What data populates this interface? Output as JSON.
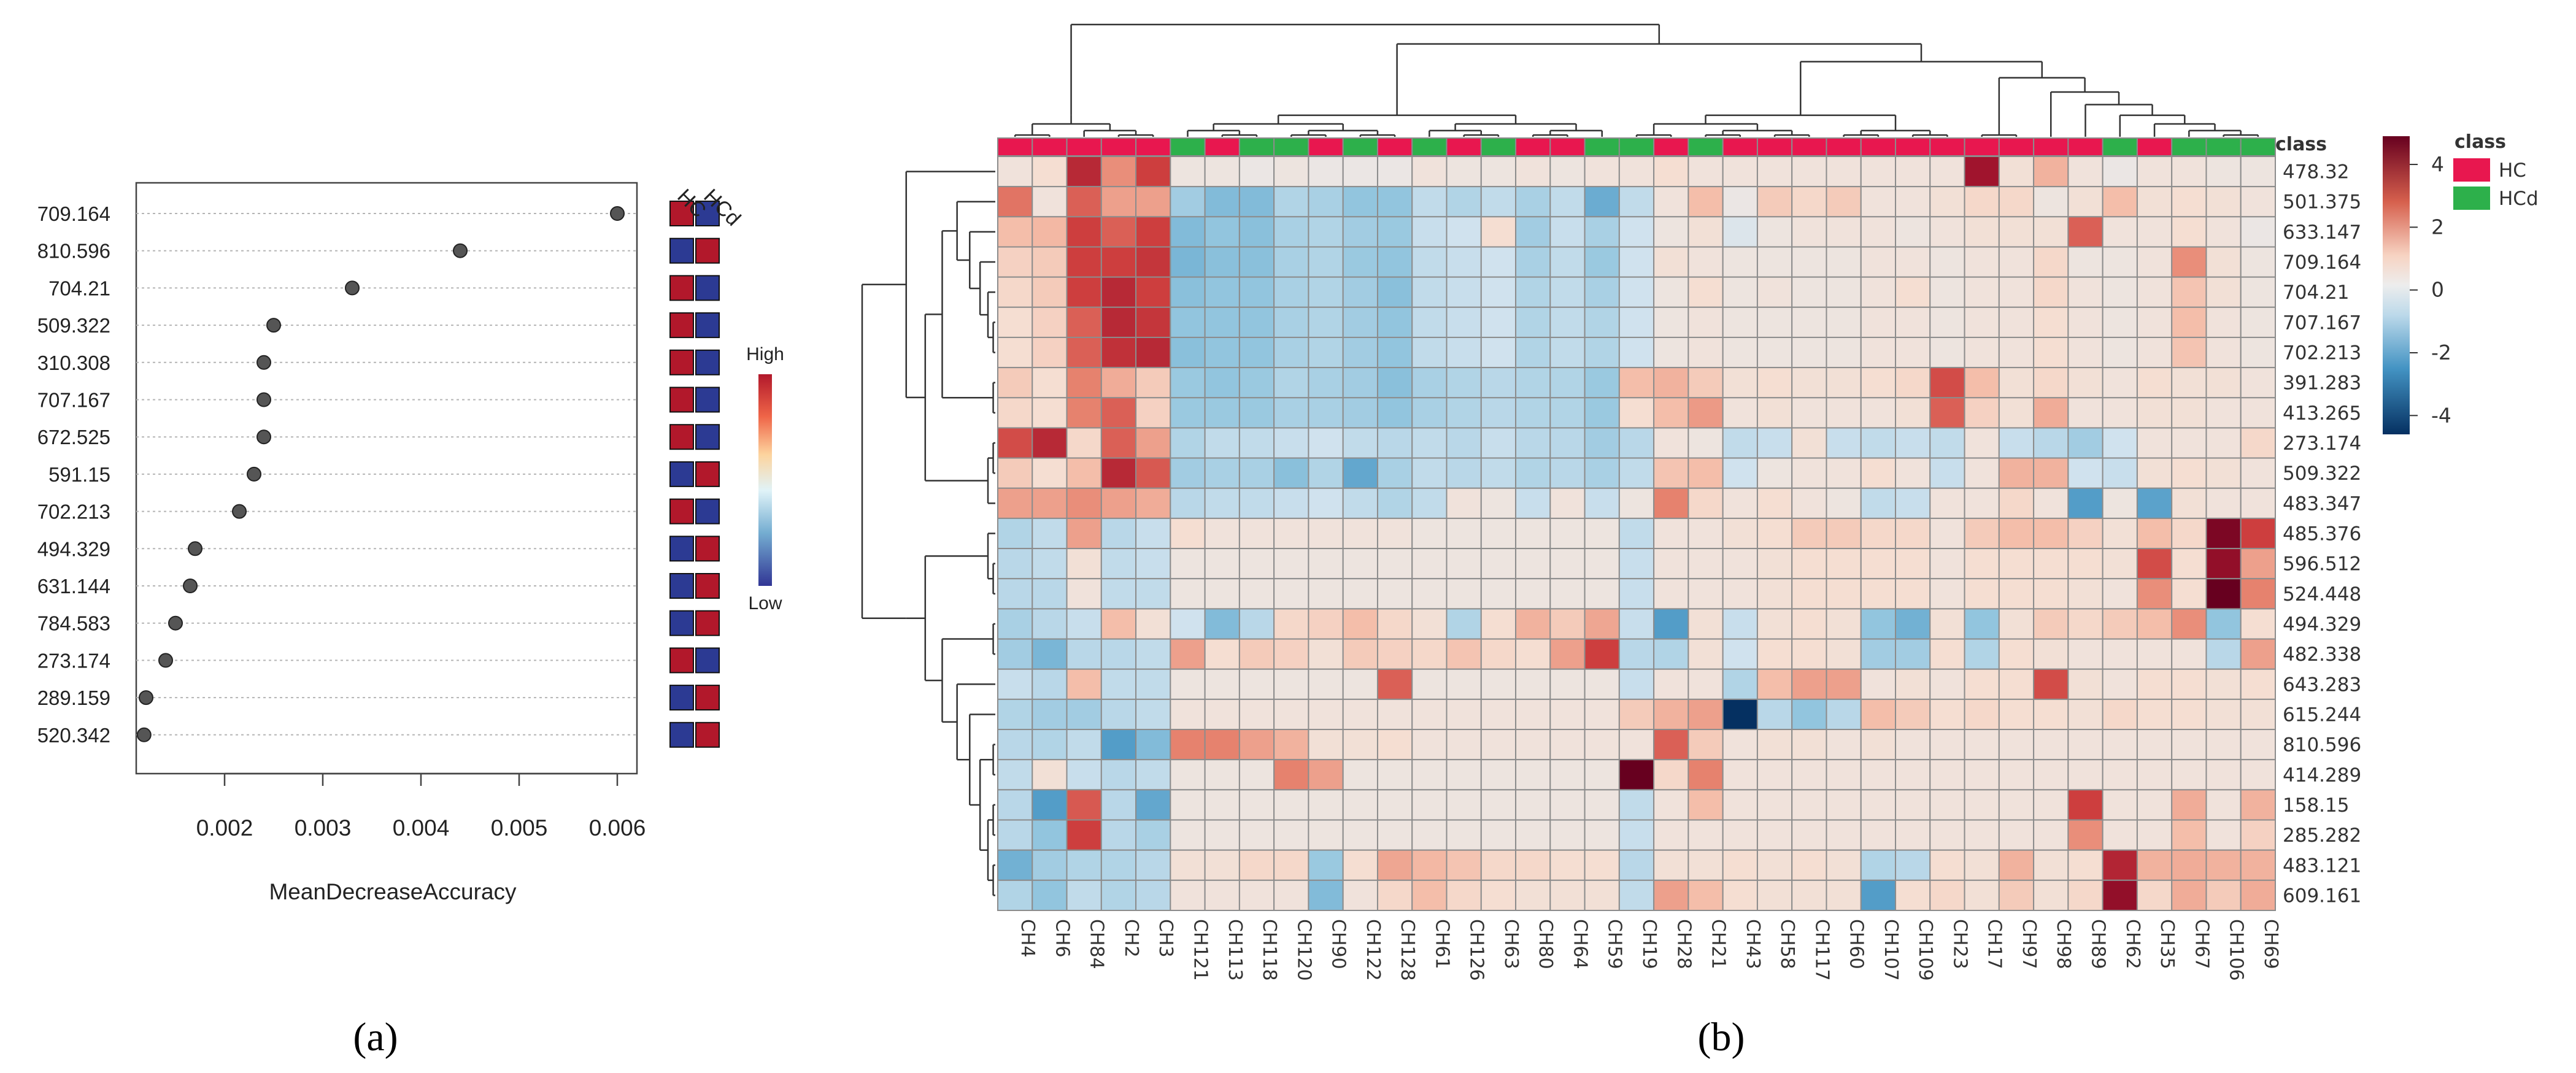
{
  "panel_a": {
    "label": "(a)",
    "col_headers": [
      "HC",
      "HCd"
    ],
    "legend": {
      "high": "High",
      "low": "Low"
    }
  },
  "panel_b": {
    "label": "(b)",
    "class_legend": {
      "title": "class",
      "items": [
        {
          "name": "HC",
          "color": "#e8174f"
        },
        {
          "name": "HCd",
          "color": "#2db04b"
        }
      ]
    },
    "colorbar_ticks": [
      4,
      2,
      0,
      -2,
      -4
    ]
  },
  "chart_data": [
    {
      "type": "dot",
      "title": "",
      "xlabel": "MeanDecreaseAccuracy",
      "ylabel": "",
      "xlim": [
        0.0011,
        0.0062
      ],
      "xticks": [
        0.002,
        0.003,
        0.004,
        0.005,
        0.006
      ],
      "xtick_labels": [
        "0.002",
        "0.003",
        "0.004",
        "0.005",
        "0.006"
      ],
      "features": [
        "709.164",
        "810.596",
        "704.21",
        "509.322",
        "310.308",
        "707.167",
        "672.525",
        "591.15",
        "702.213",
        "494.329",
        "631.144",
        "784.583",
        "273.174",
        "289.159",
        "520.342"
      ],
      "values": [
        0.006,
        0.0044,
        0.0033,
        0.0025,
        0.0024,
        0.0024,
        0.0024,
        0.0023,
        0.00215,
        0.0017,
        0.00165,
        0.0015,
        0.0014,
        0.0012,
        0.00118
      ],
      "class_levels": [
        "HC",
        "HCd"
      ],
      "class_levels_colors": {
        "high": "#b2182b",
        "low": "#2c3a93"
      },
      "class_levels_matrix": [
        [
          "high",
          "low"
        ],
        [
          "low",
          "high"
        ],
        [
          "high",
          "low"
        ],
        [
          "high",
          "low"
        ],
        [
          "high",
          "low"
        ],
        [
          "high",
          "low"
        ],
        [
          "high",
          "low"
        ],
        [
          "low",
          "high"
        ],
        [
          "high",
          "low"
        ],
        [
          "low",
          "high"
        ],
        [
          "low",
          "high"
        ],
        [
          "low",
          "high"
        ],
        [
          "high",
          "low"
        ],
        [
          "low",
          "high"
        ],
        [
          "low",
          "high"
        ]
      ]
    },
    {
      "type": "heatmap",
      "title": "",
      "columns": [
        "CH4",
        "CH6",
        "CH84",
        "CH2",
        "CH3",
        "CH121",
        "CH113",
        "CH118",
        "CH120",
        "CH90",
        "CH122",
        "CH128",
        "CH61",
        "CH126",
        "CH63",
        "CH80",
        "CH64",
        "CH59",
        "CH19",
        "CH28",
        "CH21",
        "CH43",
        "CH58",
        "CH117",
        "CH60",
        "CH107",
        "CH109",
        "CH23",
        "CH17",
        "CH97",
        "CH98",
        "CH89",
        "CH62",
        "CH35",
        "CH67",
        "CH106",
        "CH69"
      ],
      "column_class": [
        "HC",
        "HC",
        "HC",
        "HC",
        "HC",
        "HCd",
        "HC",
        "HCd",
        "HCd",
        "HC",
        "HCd",
        "HC",
        "HCd",
        "HC",
        "HCd",
        "HC",
        "HC",
        "HCd",
        "HCd",
        "HC",
        "HCd",
        "HC",
        "HC",
        "HC",
        "HC",
        "HC",
        "HC",
        "HC",
        "HC",
        "HC",
        "HC",
        "HC",
        "HCd",
        "HC",
        "HCd",
        "HCd",
        "HCd"
      ],
      "rows": [
        "478.32",
        "501.375",
        "633.147",
        "709.164",
        "704.21",
        "707.167",
        "702.213",
        "391.283",
        "413.265",
        "273.174",
        "509.322",
        "483.347",
        "485.376",
        "596.512",
        "524.448",
        "494.329",
        "482.338",
        "643.283",
        "615.244",
        "810.596",
        "414.289",
        "158.15",
        "285.282",
        "483.121",
        "609.161"
      ],
      "value_range": [
        -4.5,
        4.5
      ],
      "colors": {
        "low": "#053061",
        "mid": "#e8e8e8",
        "high": "#67001f"
      },
      "values": [
        [
          0.3,
          0.5,
          3.5,
          1.8,
          3.0,
          0.2,
          0.2,
          0.1,
          0.2,
          0.1,
          0.1,
          0.1,
          0.3,
          0.2,
          0.2,
          0.3,
          0.2,
          0.3,
          0.3,
          0.5,
          0.3,
          0.3,
          0.3,
          0.3,
          0.3,
          0.3,
          0.3,
          0.3,
          4.0,
          0.4,
          1.2,
          0.3,
          0.1,
          0.3,
          0.3,
          0.2,
          0.2
        ],
        [
          2.2,
          0.3,
          2.5,
          1.5,
          1.5,
          -0.8,
          -1.2,
          -1.2,
          -0.6,
          -0.7,
          -1.0,
          -1.0,
          -0.4,
          -0.6,
          -0.4,
          -0.7,
          -0.4,
          -1.5,
          -0.4,
          0.3,
          1.0,
          0.1,
          0.8,
          0.6,
          0.8,
          0.3,
          0.3,
          0.4,
          0.6,
          0.6,
          0.2,
          0.4,
          1.0,
          0.4,
          0.5,
          0.4,
          0.3
        ],
        [
          1.0,
          1.1,
          3.0,
          2.5,
          3.0,
          -1.2,
          -1.0,
          -1.1,
          -0.7,
          -0.6,
          -0.8,
          -0.9,
          -0.3,
          -0.2,
          0.5,
          -0.8,
          -0.3,
          -0.7,
          -0.2,
          0.2,
          0.4,
          -0.1,
          0.2,
          0.3,
          0.3,
          0.3,
          0.2,
          0.3,
          0.4,
          0.4,
          0.4,
          2.5,
          0.3,
          0.3,
          0.5,
          0.3,
          0.1
        ],
        [
          0.7,
          0.8,
          3.0,
          3.0,
          3.2,
          -1.3,
          -1.1,
          -1.1,
          -0.7,
          -0.6,
          -0.9,
          -1.0,
          -0.4,
          -0.3,
          -0.2,
          -0.7,
          -0.4,
          -0.9,
          -0.2,
          0.4,
          0.3,
          0.2,
          0.2,
          0.2,
          0.2,
          0.3,
          0.3,
          0.2,
          0.3,
          0.3,
          0.6,
          0.2,
          0.2,
          0.3,
          1.8,
          0.4,
          0.2
        ],
        [
          0.6,
          0.8,
          3.0,
          3.5,
          3.0,
          -1.1,
          -1.0,
          -1.0,
          -0.7,
          -0.6,
          -0.8,
          -1.1,
          -0.4,
          -0.3,
          -0.2,
          -0.6,
          -0.4,
          -0.7,
          -0.2,
          0.2,
          0.5,
          0.2,
          0.3,
          0.2,
          0.2,
          0.3,
          0.5,
          0.2,
          0.3,
          0.3,
          0.6,
          0.3,
          0.2,
          0.3,
          0.9,
          0.4,
          0.2
        ],
        [
          0.5,
          0.7,
          2.5,
          3.5,
          3.2,
          -1.0,
          -1.0,
          -1.0,
          -0.7,
          -0.6,
          -0.8,
          -1.0,
          -0.4,
          -0.3,
          -0.2,
          -0.6,
          -0.4,
          -0.6,
          -0.2,
          0.2,
          0.3,
          0.2,
          0.2,
          0.2,
          0.2,
          0.3,
          0.3,
          0.2,
          0.3,
          0.3,
          0.5,
          0.3,
          0.2,
          0.3,
          1.0,
          0.3,
          0.2
        ],
        [
          0.5,
          0.7,
          2.5,
          3.3,
          3.5,
          -1.1,
          -1.0,
          -1.0,
          -0.7,
          -0.6,
          -0.8,
          -1.0,
          -0.4,
          -0.3,
          -0.2,
          -0.6,
          -0.4,
          -0.6,
          -0.2,
          0.2,
          0.3,
          0.2,
          0.2,
          0.2,
          0.2,
          0.3,
          0.3,
          0.2,
          0.3,
          0.3,
          0.5,
          0.3,
          0.2,
          0.3,
          0.9,
          0.3,
          0.2
        ],
        [
          0.8,
          0.5,
          2.0,
          1.3,
          0.8,
          -0.9,
          -1.0,
          -0.9,
          -0.6,
          -0.7,
          -0.8,
          -1.1,
          -0.7,
          -0.6,
          -0.5,
          -0.6,
          -0.6,
          -0.9,
          1.0,
          1.2,
          0.8,
          0.4,
          0.5,
          0.4,
          0.4,
          0.5,
          0.6,
          2.8,
          1.0,
          0.4,
          0.6,
          0.4,
          0.3,
          0.5,
          0.4,
          0.4,
          0.3
        ],
        [
          0.6,
          0.5,
          2.0,
          2.5,
          0.7,
          -0.9,
          -0.9,
          -0.9,
          -0.7,
          -0.7,
          -0.8,
          -1.0,
          -0.7,
          -0.6,
          -0.5,
          -0.6,
          -0.6,
          -0.9,
          0.5,
          1.0,
          1.6,
          0.3,
          0.4,
          0.3,
          0.3,
          0.3,
          0.4,
          2.5,
          0.7,
          0.4,
          1.3,
          0.3,
          0.3,
          0.4,
          0.4,
          0.3,
          0.3
        ],
        [
          2.8,
          3.5,
          0.6,
          2.5,
          1.5,
          -0.6,
          -0.4,
          -0.4,
          -0.3,
          -0.2,
          -0.4,
          -0.5,
          -0.4,
          -0.5,
          -0.3,
          -0.5,
          -0.5,
          -0.8,
          -0.5,
          0.3,
          0.2,
          -0.4,
          -0.3,
          0.4,
          -0.3,
          -0.4,
          -0.3,
          -0.4,
          0.3,
          -0.3,
          -0.5,
          -0.8,
          -0.2,
          0.3,
          0.3,
          0.3,
          0.6
        ],
        [
          0.8,
          0.5,
          1.0,
          3.5,
          2.6,
          -0.8,
          -0.7,
          -0.7,
          -1.1,
          -0.6,
          -1.6,
          -0.7,
          -0.4,
          -0.5,
          -0.4,
          -0.6,
          -0.5,
          -0.7,
          -0.4,
          0.9,
          1.0,
          -0.2,
          0.2,
          0.3,
          0.3,
          0.5,
          0.3,
          -0.3,
          0.3,
          1.2,
          1.2,
          -0.2,
          -0.3,
          0.4,
          0.5,
          0.4,
          0.3
        ],
        [
          1.5,
          1.5,
          1.8,
          1.5,
          1.3,
          -0.5,
          -0.4,
          -0.4,
          -0.3,
          -0.2,
          -0.4,
          -0.6,
          -0.4,
          0.3,
          0.2,
          -0.3,
          0.3,
          -0.3,
          0.2,
          2.0,
          0.6,
          0.3,
          0.5,
          0.3,
          0.2,
          -0.4,
          -0.3,
          0.3,
          0.3,
          0.6,
          0.3,
          -1.8,
          0.2,
          -1.7,
          0.4,
          0.3,
          0.3
        ],
        [
          -0.6,
          -0.4,
          1.5,
          -0.5,
          -0.3,
          0.5,
          0.3,
          0.3,
          0.3,
          0.3,
          0.3,
          0.3,
          0.2,
          0.2,
          0.2,
          0.2,
          0.2,
          0.2,
          -0.4,
          0.3,
          0.3,
          0.4,
          0.5,
          0.8,
          0.8,
          0.6,
          0.6,
          0.3,
          0.8,
          1.0,
          1.0,
          0.7,
          0.4,
          1.0,
          0.6,
          4.5,
          3.0
        ],
        [
          -0.5,
          -0.4,
          0.4,
          -0.4,
          -0.3,
          0.2,
          0.2,
          0.2,
          0.2,
          0.2,
          0.2,
          0.2,
          0.2,
          0.2,
          0.2,
          0.2,
          0.2,
          0.2,
          -0.3,
          0.3,
          0.3,
          0.3,
          0.4,
          0.5,
          0.5,
          0.5,
          0.5,
          0.3,
          0.5,
          0.5,
          0.5,
          0.5,
          0.4,
          2.8,
          0.5,
          4.2,
          1.5
        ],
        [
          -0.5,
          -0.5,
          0.3,
          -0.4,
          -0.4,
          0.2,
          0.2,
          0.2,
          0.2,
          0.2,
          0.2,
          0.2,
          0.2,
          0.2,
          0.2,
          0.2,
          0.2,
          0.2,
          -0.3,
          0.3,
          0.3,
          0.3,
          0.4,
          0.5,
          0.5,
          0.5,
          0.5,
          0.3,
          0.5,
          0.5,
          0.5,
          0.4,
          0.3,
          1.8,
          0.5,
          4.8,
          2.0
        ],
        [
          -0.7,
          -0.5,
          -0.3,
          1.0,
          0.4,
          -0.2,
          -1.2,
          -0.5,
          0.6,
          0.7,
          1.0,
          0.6,
          0.4,
          -0.6,
          0.5,
          1.2,
          0.8,
          1.4,
          -0.3,
          -1.8,
          0.4,
          -0.3,
          0.4,
          0.5,
          0.4,
          -1.0,
          -1.4,
          0.4,
          -1.0,
          0.4,
          0.8,
          0.6,
          0.8,
          1.0,
          1.8,
          -1.0,
          0.5
        ],
        [
          -0.8,
          -1.3,
          -0.5,
          -0.5,
          -0.4,
          1.5,
          0.5,
          0.8,
          0.7,
          0.4,
          0.8,
          0.7,
          0.6,
          0.9,
          0.6,
          0.5,
          1.5,
          3.0,
          -0.5,
          -0.6,
          0.4,
          -0.2,
          0.5,
          0.5,
          0.4,
          -0.8,
          -0.8,
          0.5,
          -0.6,
          0.5,
          0.4,
          0.3,
          0.3,
          0.3,
          0.3,
          -0.5,
          1.5
        ],
        [
          -0.3,
          -0.5,
          1.0,
          -0.4,
          -0.4,
          0.2,
          0.2,
          0.2,
          0.2,
          0.2,
          0.2,
          2.5,
          0.2,
          0.2,
          0.2,
          0.2,
          0.2,
          0.2,
          -0.3,
          0.3,
          0.3,
          -0.6,
          1.0,
          1.5,
          1.5,
          0.3,
          0.4,
          0.3,
          0.5,
          0.5,
          2.8,
          0.4,
          0.3,
          0.5,
          0.5,
          0.4,
          0.5
        ],
        [
          -0.6,
          -0.8,
          -0.8,
          -0.5,
          -0.4,
          0.3,
          0.3,
          0.3,
          0.3,
          0.3,
          0.3,
          0.3,
          0.3,
          0.3,
          0.3,
          0.3,
          0.3,
          0.3,
          0.8,
          1.2,
          1.5,
          -4.5,
          -0.5,
          -1.0,
          -0.5,
          1.0,
          0.8,
          0.5,
          0.6,
          0.5,
          0.5,
          0.4,
          0.6,
          0.5,
          0.5,
          0.4,
          0.4
        ],
        [
          -0.5,
          -0.6,
          -0.4,
          -1.8,
          -1.2,
          2.0,
          2.0,
          1.5,
          1.2,
          0.4,
          0.4,
          0.5,
          0.3,
          0.3,
          0.3,
          0.3,
          0.3,
          0.3,
          0.3,
          2.5,
          0.8,
          0.3,
          0.4,
          0.4,
          0.3,
          0.4,
          0.3,
          0.3,
          0.3,
          0.3,
          0.3,
          0.3,
          0.3,
          0.3,
          0.3,
          0.3,
          0.3
        ],
        [
          -0.4,
          0.4,
          -0.3,
          -0.5,
          -0.4,
          0.2,
          0.2,
          0.2,
          2.0,
          1.5,
          0.2,
          0.2,
          0.2,
          0.2,
          0.2,
          0.2,
          0.2,
          0.2,
          4.8,
          0.6,
          2.0,
          0.3,
          0.3,
          0.3,
          0.3,
          0.3,
          0.3,
          0.3,
          0.3,
          0.3,
          0.3,
          0.3,
          0.3,
          0.3,
          0.3,
          0.3,
          0.3
        ],
        [
          -0.5,
          -1.8,
          2.6,
          -0.5,
          -1.6,
          0.2,
          0.2,
          0.2,
          0.2,
          0.2,
          0.2,
          0.2,
          0.2,
          0.2,
          0.2,
          0.2,
          0.2,
          0.2,
          -0.4,
          0.3,
          1.0,
          0.3,
          0.3,
          0.3,
          0.3,
          0.3,
          0.3,
          0.3,
          0.3,
          0.3,
          0.3,
          3.0,
          0.3,
          0.3,
          1.3,
          0.3,
          1.2
        ],
        [
          -0.5,
          -1.0,
          3.0,
          -0.5,
          -0.7,
          0.2,
          0.2,
          0.2,
          0.2,
          0.2,
          0.2,
          0.2,
          0.2,
          0.2,
          0.2,
          0.2,
          0.2,
          0.2,
          -0.3,
          0.3,
          0.3,
          0.3,
          0.3,
          0.3,
          0.3,
          0.3,
          0.3,
          0.3,
          0.3,
          0.3,
          0.3,
          1.8,
          0.3,
          0.3,
          1.0,
          0.3,
          0.7
        ],
        [
          -1.4,
          -0.8,
          -0.6,
          -0.6,
          -0.5,
          0.4,
          0.4,
          0.6,
          0.6,
          -0.9,
          0.5,
          1.4,
          1.1,
          0.9,
          0.6,
          0.6,
          0.5,
          0.5,
          -0.5,
          0.4,
          0.4,
          0.5,
          0.4,
          0.5,
          0.4,
          -0.6,
          -0.5,
          0.5,
          0.4,
          1.2,
          0.4,
          0.5,
          3.6,
          1.2,
          1.3,
          1.2,
          1.2
        ],
        [
          -0.6,
          -1.0,
          -0.4,
          -0.6,
          -0.5,
          0.3,
          0.3,
          0.3,
          0.3,
          -1.2,
          0.3,
          0.6,
          1.0,
          0.6,
          0.5,
          0.4,
          0.4,
          0.4,
          -0.4,
          1.5,
          1.0,
          0.5,
          0.4,
          0.4,
          0.4,
          -1.8,
          0.5,
          0.6,
          0.4,
          0.8,
          0.4,
          0.6,
          4.2,
          0.6,
          1.3,
          0.8,
          1.3
        ]
      ],
      "colorbar_ticks": [
        4,
        2,
        0,
        -2,
        -4
      ]
    }
  ]
}
